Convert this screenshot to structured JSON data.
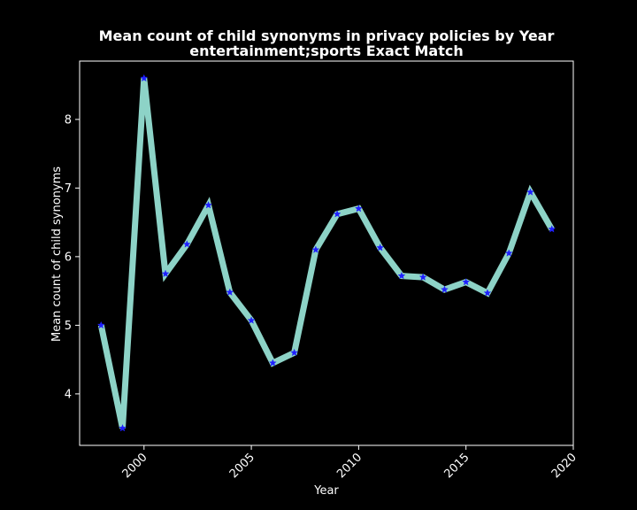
{
  "chart_data": {
    "type": "line",
    "title": "Mean count of child synonyms in privacy policies by Year",
    "subtitle": "entertainment;sports Exact Match",
    "xlabel": "Year",
    "ylabel": "Mean count of child synonyms",
    "xlim": [
      1997,
      2020
    ],
    "ylim": [
      3.25,
      8.85
    ],
    "xticks": [
      2000,
      2005,
      2010,
      2015,
      2020
    ],
    "yticks": [
      4,
      5,
      6,
      7,
      8
    ],
    "grid": false,
    "line_color": "#8dd3c7",
    "marker_color": "#1f1fff",
    "marker": "star",
    "background": "#000000",
    "series": [
      {
        "x": [
          1998,
          1999,
          2000,
          2001,
          2002,
          2003,
          2004,
          2005,
          2006,
          2007,
          2008,
          2009,
          2010,
          2011,
          2012,
          2013,
          2014,
          2015,
          2016,
          2017,
          2018,
          2019
        ],
        "values": [
          5.0,
          3.5,
          8.6,
          5.75,
          6.18,
          6.75,
          5.48,
          5.07,
          4.45,
          4.6,
          6.1,
          6.62,
          6.7,
          6.13,
          5.72,
          5.7,
          5.52,
          5.63,
          5.47,
          6.05,
          6.94,
          6.4
        ]
      }
    ]
  }
}
